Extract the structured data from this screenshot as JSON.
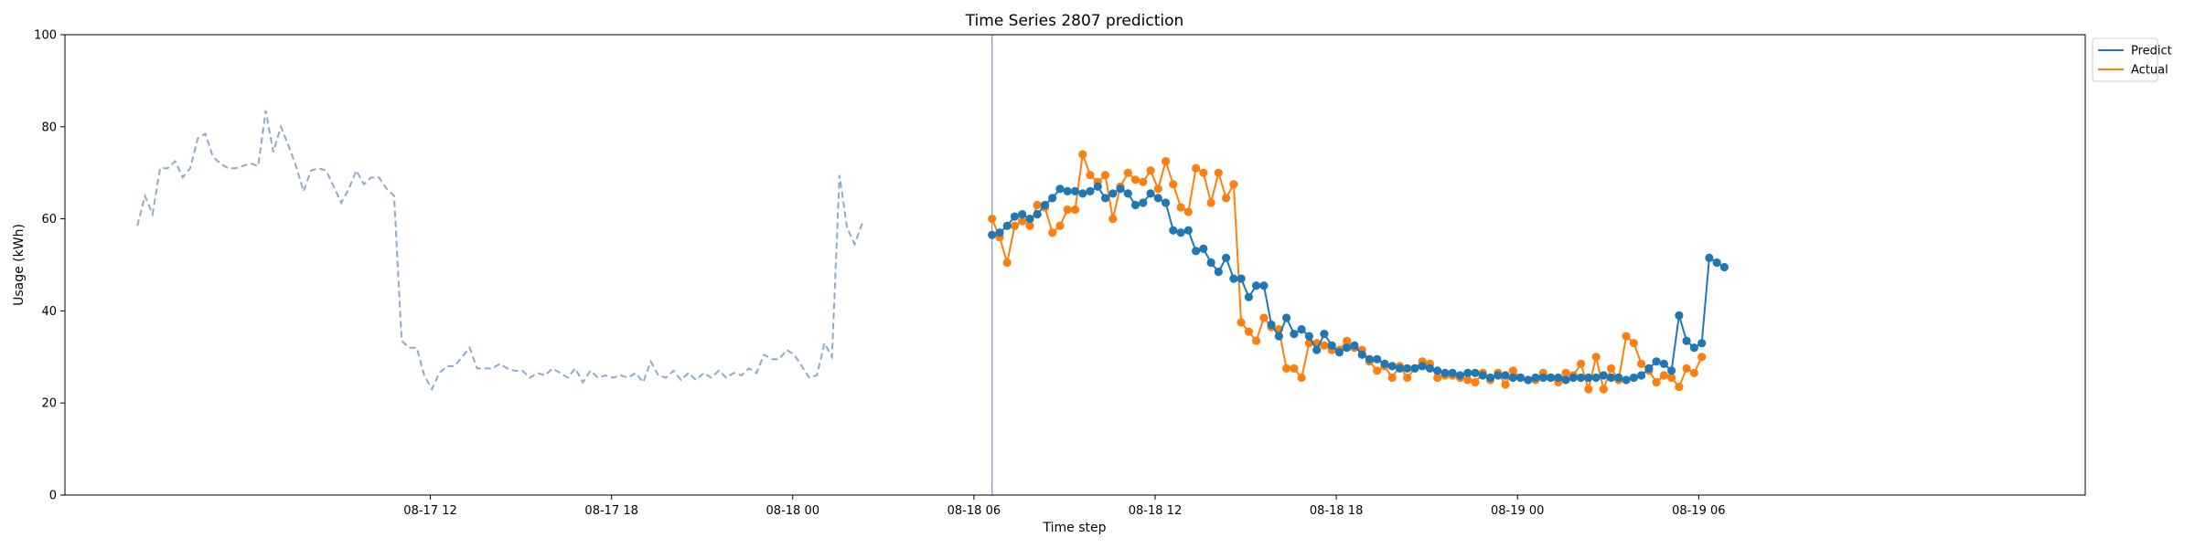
{
  "chart_data": {
    "type": "line",
    "title": "Time Series 2807 prediction",
    "xlabel": "Time step",
    "ylabel": "Usage (kWh)",
    "ylim": [
      0,
      100
    ],
    "yticks": [
      0,
      20,
      40,
      60,
      80,
      100
    ],
    "grid": false,
    "legend_position": "outside-top-right",
    "x_unit": "hours since 08-17 00:00",
    "xlim": [
      -0.1,
      66.8
    ],
    "xticks": [
      {
        "label": "08-17 12",
        "x": 12
      },
      {
        "label": "08-17 18",
        "x": 18
      },
      {
        "label": "08-18 00",
        "x": 24
      },
      {
        "label": "08-18 06",
        "x": 30
      },
      {
        "label": "08-18 12",
        "x": 36
      },
      {
        "label": "08-18 18",
        "x": 42
      },
      {
        "label": "08-19 00",
        "x": 48
      },
      {
        "label": "08-19 06",
        "x": 54
      }
    ],
    "history": {
      "x_start": 2.3,
      "step": 0.25,
      "color": "#8faac9",
      "style": "dashed",
      "values": [
        58.5,
        65,
        61,
        71,
        71,
        72.5,
        69,
        71,
        77.5,
        78.5,
        73.5,
        72,
        71,
        71,
        71.5,
        72,
        71.5,
        83.5,
        74.5,
        80,
        76,
        71.5,
        66,
        70.5,
        71,
        70.5,
        67,
        63.5,
        66.5,
        70.5,
        67.5,
        69,
        69,
        66.5,
        65,
        33.5,
        32,
        32,
        26,
        23,
        26.5,
        28,
        28,
        30,
        32,
        27.5,
        27.5,
        27.5,
        28.5,
        27.5,
        27,
        27,
        25.5,
        26.5,
        26,
        27.5,
        26.5,
        25.5,
        27.5,
        24.5,
        27,
        25.5,
        26,
        25.5,
        26,
        25.5,
        26.5,
        24.5,
        29,
        26,
        25.5,
        27,
        25,
        26.5,
        25,
        26.5,
        25.5,
        27,
        25.5,
        26.5,
        26,
        27.5,
        26.5,
        30.5,
        29.5,
        29.5,
        31.5,
        30.5,
        28,
        25.5,
        26,
        33,
        30,
        69.5,
        58,
        54.5,
        59
      ]
    },
    "divider_x": 30.6,
    "series": [
      {
        "name": "Predict",
        "color": "#1f77b4",
        "x_start": 30.6,
        "step": 0.25,
        "values": [
          56.5,
          57,
          58.5,
          60.5,
          61,
          60,
          61,
          63,
          64.5,
          66.5,
          66,
          66,
          65.5,
          66,
          67,
          64.5,
          65.5,
          66.5,
          65.5,
          63,
          63.5,
          65.5,
          64.5,
          63.5,
          57.5,
          57,
          57.5,
          53,
          53.5,
          50.5,
          48.5,
          51.5,
          47,
          47,
          43,
          45.5,
          45.5,
          37,
          34.5,
          38.5,
          35,
          36,
          34.5,
          31.5,
          35,
          32.5,
          31,
          32,
          32.5,
          30.5,
          29.5,
          29.5,
          28.5,
          28,
          27.5,
          27.5,
          27.5,
          28,
          27.5,
          27,
          26.5,
          26.5,
          26,
          26.5,
          26.5,
          26,
          25.5,
          26,
          26,
          25.5,
          25.5,
          25,
          25.5,
          25.5,
          25.5,
          25.5,
          25,
          25.5,
          25.5,
          25.5,
          25.5,
          26,
          25.5,
          25.5,
          25,
          25.5,
          26,
          27.5,
          29,
          28.5,
          27,
          39,
          33.5,
          32,
          33,
          51.5,
          50.5,
          49.5
        ]
      },
      {
        "name": "Actual",
        "color": "#ff7f0e",
        "x_start": 30.6,
        "step": 0.25,
        "values": [
          60,
          56,
          50.5,
          58.5,
          59.5,
          58.5,
          63,
          62.5,
          57,
          58.5,
          62,
          62,
          74,
          69.5,
          68,
          69.5,
          60,
          67,
          70,
          68.5,
          68,
          70.5,
          66.5,
          72.5,
          67.5,
          62.5,
          61.5,
          71,
          70,
          63.5,
          70,
          64.5,
          67.5,
          37.5,
          35.5,
          33.5,
          38.5,
          36.5,
          36,
          27.5,
          27.5,
          25.5,
          33,
          33,
          32.5,
          31.5,
          31.5,
          33.5,
          32,
          31.5,
          29,
          27,
          28,
          25.5,
          28,
          25.5,
          27.5,
          29,
          28.5,
          25.5,
          26,
          26,
          25.5,
          25,
          24.5,
          26.5,
          25,
          26.5,
          24,
          27,
          25.5,
          25,
          25,
          26.5,
          25.5,
          24.5,
          26.5,
          26,
          28.5,
          23,
          30,
          23,
          27.5,
          25,
          34.5,
          33,
          28.5,
          27,
          24.5,
          26,
          25.5,
          23.5,
          27.5,
          26.5,
          30
        ]
      }
    ]
  }
}
